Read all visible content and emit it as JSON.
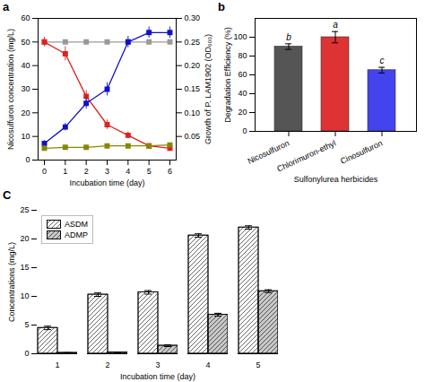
{
  "chart_data": [
    {
      "type": "line",
      "title": "a",
      "x": [
        0,
        1,
        2,
        3,
        4,
        5,
        6
      ],
      "xlim": [
        -0.3,
        6.3
      ],
      "xticks": [
        0,
        1,
        2,
        3,
        4,
        5,
        6
      ],
      "xlabel": "Incubation time (day)",
      "ylabel": "Nicosulfuron concentration (mg/L)",
      "ylim": [
        0,
        60
      ],
      "yticks": [
        0,
        10,
        20,
        30,
        40,
        50,
        60
      ],
      "y2label": "Growth of P. LAM1902 (OD₆₀₀)",
      "y2lim": [
        0,
        0.3
      ],
      "y2ticks": [
        0.05,
        {
          "value": 0.1,
          "label": "0.10"
        },
        0.15,
        {
          "value": 0.2,
          "label": "0.20"
        },
        0.25,
        {
          "value": 0.3,
          "label": "0.30"
        }
      ],
      "series": [
        {
          "color": "#999999",
          "marker": "square",
          "values": [
            50,
            50,
            50,
            50,
            50,
            50,
            50
          ],
          "errors": [
            0.5,
            0.5,
            0.5,
            0.5,
            0.5,
            0.5,
            0.5
          ]
        },
        {
          "color": "#dd2222",
          "marker": "square",
          "values": [
            50,
            45,
            27,
            15,
            10.5,
            6,
            5
          ],
          "errors": [
            2,
            3,
            2.5,
            2,
            1.5,
            1,
            0.5
          ]
        },
        {
          "axis": "y2",
          "color": "#1111cc",
          "marker": "square",
          "values": [
            0.035,
            0.07,
            0.12,
            0.15,
            0.25,
            0.27,
            0.27
          ],
          "errors": [
            0.006,
            0.008,
            0.012,
            0.014,
            0.012,
            0.012,
            0.012
          ]
        },
        {
          "axis": "y2",
          "color": "#888800",
          "marker": "square",
          "values": [
            0.025,
            0.027,
            0.027,
            0.03,
            0.03,
            0.03,
            0.032
          ],
          "errors": [
            0.002,
            0.002,
            0.002,
            0.002,
            0.002,
            0.002,
            0.002
          ]
        }
      ]
    },
    {
      "type": "bar",
      "title": "b",
      "categories": [
        "Nicosulfuron",
        "Chlorimuron-ethyl",
        "Cinosulfuron"
      ],
      "values": [
        90,
        100,
        65
      ],
      "errors": [
        3,
        6,
        3
      ],
      "colors": [
        "#555555",
        "#dd3333",
        "#4444ee"
      ],
      "letters": [
        "b",
        "a",
        "c"
      ],
      "xlabel": "Sulfonylurea herbicides",
      "ylabel": "Degradation Efficiency (%)",
      "ylim": [
        0,
        120
      ],
      "yticks": [
        0,
        20,
        40,
        60,
        80,
        100
      ]
    },
    {
      "type": "bar",
      "title": "C",
      "categories": [
        "1",
        "2",
        "3",
        "4",
        "5"
      ],
      "xlabel": "Incubation time (day)",
      "ylabel": "Concentrations (mg/L)",
      "ylim": [
        0,
        25
      ],
      "yticks": [
        0,
        5,
        10,
        15,
        20,
        25
      ],
      "legend": "upper left",
      "series": [
        {
          "name": "ASDM",
          "color": "white",
          "values": [
            4.5,
            10.3,
            10.7,
            20.6,
            22.0
          ],
          "errors": [
            0.3,
            0.3,
            0.3,
            0.3,
            0.3
          ]
        },
        {
          "name": "ADMP",
          "color": "#c8c8c8",
          "values": [
            0.15,
            0.25,
            1.4,
            6.8,
            10.9
          ],
          "errors": [
            0.05,
            0.05,
            0.15,
            0.25,
            0.25
          ]
        }
      ]
    }
  ]
}
